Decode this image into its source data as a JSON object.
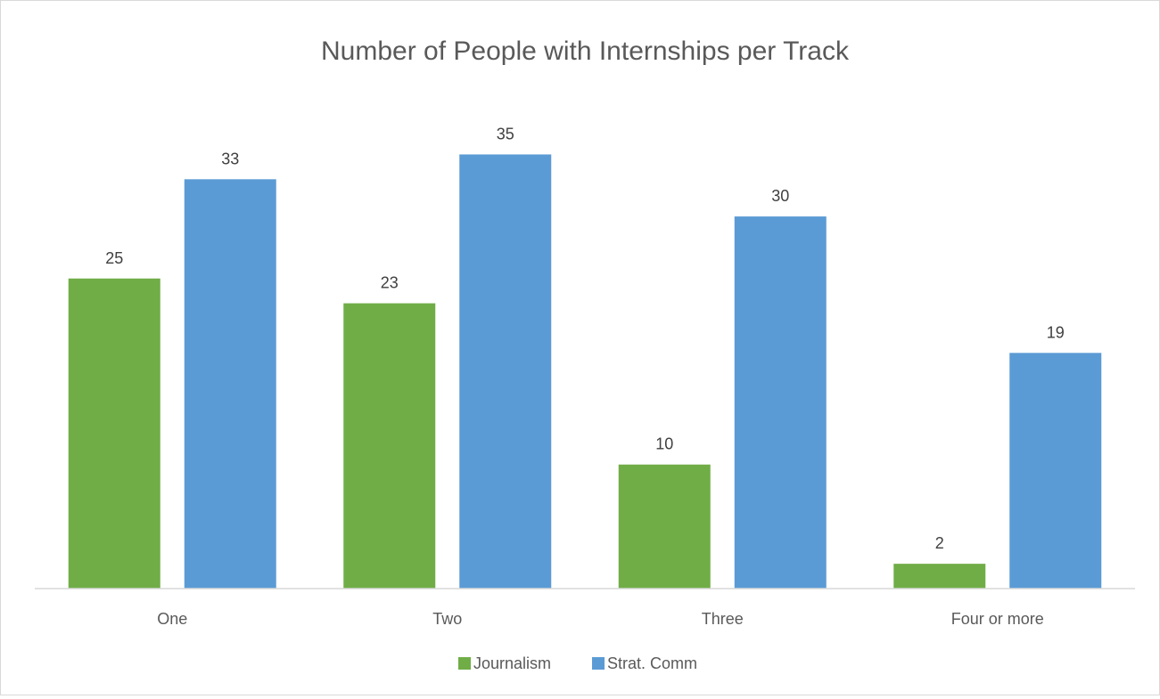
{
  "chart_data": {
    "type": "bar",
    "title": "Number of People with Internships per Track",
    "xlabel": "",
    "ylabel": "",
    "categories": [
      "One",
      "Two",
      "Three",
      "Four or more"
    ],
    "series": [
      {
        "name": "Journalism",
        "values": [
          25,
          23,
          10,
          2
        ],
        "color": "#70ad47"
      },
      {
        "name": "Strat. Comm",
        "values": [
          33,
          35,
          30,
          19
        ],
        "color": "#5b9bd5"
      }
    ],
    "ylim": [
      0,
      35
    ],
    "grid": false,
    "data_labels": true,
    "legend_position": "bottom"
  }
}
